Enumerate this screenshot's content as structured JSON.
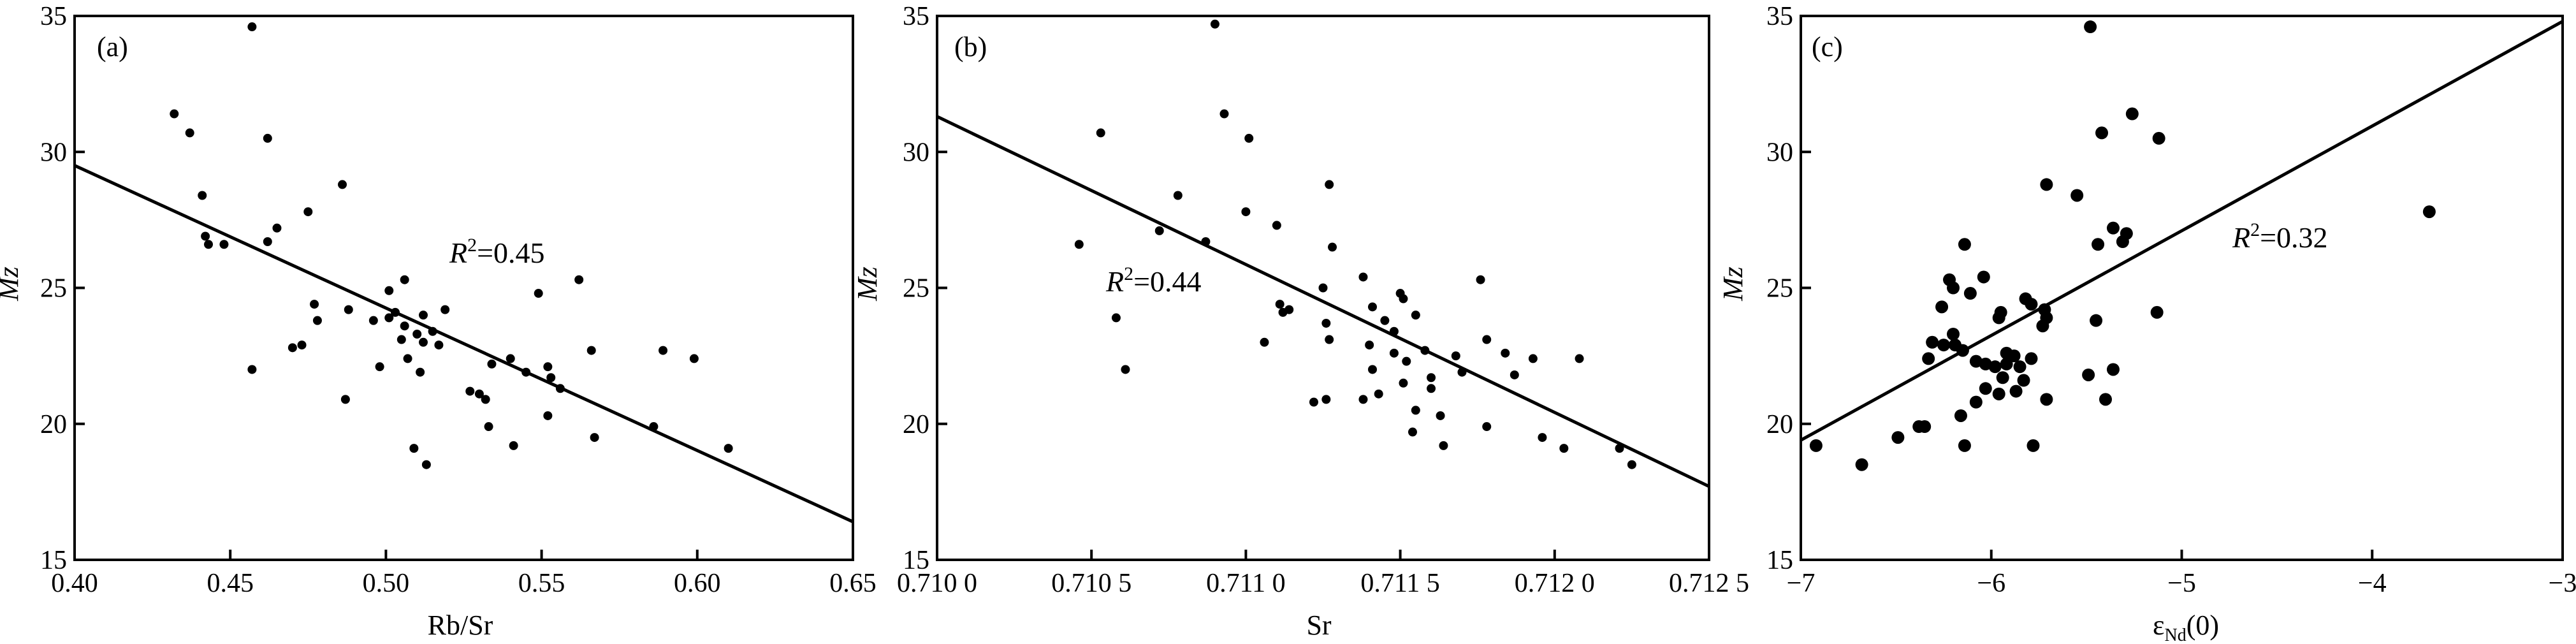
{
  "chart_data": [
    {
      "type": "scatter",
      "panel_label": "(a)",
      "xlabel": "Rb/Sr",
      "ylabel": "Mz",
      "xlim": [
        0.4,
        0.65
      ],
      "ylim": [
        15,
        35
      ],
      "xticks": [
        "0.40",
        "0.45",
        "0.50",
        "0.55",
        "0.60",
        "0.65"
      ],
      "yticks": [
        "15",
        "20",
        "25",
        "30",
        "35"
      ],
      "annotation": {
        "prefix": "R",
        "sup": "2",
        "value": "=0.45"
      },
      "fit_line": {
        "x": [
          0.4,
          0.65
        ],
        "y": [
          29.5,
          16.4
        ]
      },
      "points": [
        [
          0.457,
          34.6
        ],
        [
          0.432,
          31.4
        ],
        [
          0.437,
          30.7
        ],
        [
          0.462,
          30.5
        ],
        [
          0.486,
          28.8
        ],
        [
          0.441,
          28.4
        ],
        [
          0.475,
          27.8
        ],
        [
          0.465,
          27.2
        ],
        [
          0.442,
          26.9
        ],
        [
          0.443,
          26.6
        ],
        [
          0.448,
          26.6
        ],
        [
          0.462,
          26.7
        ],
        [
          0.501,
          24.9
        ],
        [
          0.506,
          25.3
        ],
        [
          0.549,
          24.8
        ],
        [
          0.562,
          25.3
        ],
        [
          0.477,
          24.4
        ],
        [
          0.488,
          24.2
        ],
        [
          0.503,
          24.1
        ],
        [
          0.512,
          24.0
        ],
        [
          0.519,
          24.2
        ],
        [
          0.496,
          23.8
        ],
        [
          0.506,
          23.6
        ],
        [
          0.51,
          23.3
        ],
        [
          0.478,
          23.8
        ],
        [
          0.501,
          23.9
        ],
        [
          0.515,
          23.4
        ],
        [
          0.505,
          23.1
        ],
        [
          0.512,
          23.0
        ],
        [
          0.517,
          22.9
        ],
        [
          0.47,
          22.8
        ],
        [
          0.473,
          22.9
        ],
        [
          0.498,
          22.1
        ],
        [
          0.507,
          22.4
        ],
        [
          0.534,
          22.2
        ],
        [
          0.54,
          22.4
        ],
        [
          0.545,
          21.9
        ],
        [
          0.552,
          22.1
        ],
        [
          0.553,
          21.7
        ],
        [
          0.566,
          22.7
        ],
        [
          0.589,
          22.7
        ],
        [
          0.599,
          22.4
        ],
        [
          0.457,
          22.0
        ],
        [
          0.527,
          21.2
        ],
        [
          0.53,
          21.1
        ],
        [
          0.532,
          20.9
        ],
        [
          0.511,
          21.9
        ],
        [
          0.556,
          21.3
        ],
        [
          0.487,
          20.9
        ],
        [
          0.533,
          19.9
        ],
        [
          0.509,
          19.1
        ],
        [
          0.541,
          19.2
        ],
        [
          0.513,
          18.5
        ],
        [
          0.567,
          19.5
        ],
        [
          0.586,
          19.9
        ],
        [
          0.552,
          20.3
        ],
        [
          0.61,
          19.1
        ]
      ]
    },
    {
      "type": "scatter",
      "panel_label": "(b)",
      "xlabel": "Sr",
      "ylabel": "Mz",
      "xlim": [
        0.71,
        0.7125
      ],
      "ylim": [
        15,
        35
      ],
      "xticks": [
        "0.710 0",
        "0.710 5",
        "0.711 0",
        "0.711 5",
        "0.712 0",
        "0.712 5"
      ],
      "yticks": [
        "15",
        "20",
        "25",
        "30",
        "35"
      ],
      "annotation": {
        "prefix": "R",
        "sup": "2",
        "value": "=0.44"
      },
      "fit_line": {
        "x": [
          0.71,
          0.7125
        ],
        "y": [
          31.3,
          17.7
        ]
      },
      "points": [
        [
          0.7109,
          34.7
        ],
        [
          0.71053,
          30.7
        ],
        [
          0.71093,
          31.4
        ],
        [
          0.71101,
          30.5
        ],
        [
          0.71127,
          28.8
        ],
        [
          0.71078,
          28.4
        ],
        [
          0.711,
          27.8
        ],
        [
          0.71072,
          27.1
        ],
        [
          0.71087,
          26.7
        ],
        [
          0.7111,
          27.3
        ],
        [
          0.71128,
          26.5
        ],
        [
          0.71046,
          26.6
        ],
        [
          0.71125,
          25.0
        ],
        [
          0.71138,
          25.4
        ],
        [
          0.7115,
          24.8
        ],
        [
          0.71151,
          24.6
        ],
        [
          0.71176,
          25.3
        ],
        [
          0.71111,
          24.4
        ],
        [
          0.71112,
          24.1
        ],
        [
          0.71114,
          24.2
        ],
        [
          0.71126,
          23.7
        ],
        [
          0.71141,
          24.3
        ],
        [
          0.71145,
          23.8
        ],
        [
          0.71155,
          24.0
        ],
        [
          0.71148,
          23.4
        ],
        [
          0.71058,
          23.9
        ],
        [
          0.7114,
          22.9
        ],
        [
          0.71148,
          22.6
        ],
        [
          0.71141,
          22.0
        ],
        [
          0.71127,
          23.1
        ],
        [
          0.71152,
          22.3
        ],
        [
          0.71158,
          22.7
        ],
        [
          0.71168,
          22.5
        ],
        [
          0.71178,
          23.1
        ],
        [
          0.71184,
          22.6
        ],
        [
          0.71193,
          22.4
        ],
        [
          0.71208,
          22.4
        ],
        [
          0.71106,
          23.0
        ],
        [
          0.7117,
          21.9
        ],
        [
          0.7116,
          21.7
        ],
        [
          0.71151,
          21.5
        ],
        [
          0.71143,
          21.1
        ],
        [
          0.7116,
          21.3
        ],
        [
          0.71138,
          20.9
        ],
        [
          0.71126,
          20.9
        ],
        [
          0.71122,
          20.8
        ],
        [
          0.71163,
          20.3
        ],
        [
          0.71155,
          20.5
        ],
        [
          0.71178,
          19.9
        ],
        [
          0.71154,
          19.7
        ],
        [
          0.71164,
          19.2
        ],
        [
          0.71196,
          19.5
        ],
        [
          0.71203,
          19.1
        ],
        [
          0.71221,
          19.1
        ],
        [
          0.71225,
          18.5
        ],
        [
          0.71061,
          22.0
        ],
        [
          0.71187,
          21.8
        ]
      ]
    },
    {
      "type": "scatter",
      "panel_label": "(c)",
      "xlabel": "ε",
      "xlabel_sub": "Nd",
      "xlabel_suffix": "(0)",
      "ylabel": "Mz",
      "xlim": [
        -7,
        -3
      ],
      "ylim": [
        15,
        35
      ],
      "xticks": [
        "−7",
        "−6",
        "−5",
        "−4",
        "−3"
      ],
      "yticks": [
        "15",
        "20",
        "25",
        "30",
        "35"
      ],
      "annotation": {
        "prefix": "R",
        "sup": "2",
        "value": "=0.32"
      },
      "fit_line": {
        "x": [
          -7,
          -3
        ],
        "y": [
          19.4,
          34.8
        ]
      },
      "points": [
        [
          -5.48,
          34.6
        ],
        [
          -5.26,
          31.4
        ],
        [
          -5.42,
          30.7
        ],
        [
          -5.12,
          30.5
        ],
        [
          -5.71,
          28.8
        ],
        [
          -5.55,
          28.4
        ],
        [
          -3.7,
          27.8
        ],
        [
          -5.36,
          27.2
        ],
        [
          -5.29,
          27.0
        ],
        [
          -5.31,
          26.7
        ],
        [
          -5.44,
          26.6
        ],
        [
          -6.14,
          26.6
        ],
        [
          -6.22,
          25.3
        ],
        [
          -6.04,
          25.4
        ],
        [
          -6.2,
          25.0
        ],
        [
          -6.11,
          24.8
        ],
        [
          -5.82,
          24.6
        ],
        [
          -5.79,
          24.4
        ],
        [
          -5.95,
          24.1
        ],
        [
          -5.72,
          24.2
        ],
        [
          -5.71,
          23.9
        ],
        [
          -6.26,
          24.3
        ],
        [
          -5.96,
          23.9
        ],
        [
          -5.73,
          23.6
        ],
        [
          -5.13,
          24.1
        ],
        [
          -5.45,
          23.8
        ],
        [
          -6.2,
          23.3
        ],
        [
          -6.25,
          22.9
        ],
        [
          -6.19,
          22.9
        ],
        [
          -6.15,
          22.7
        ],
        [
          -6.31,
          23.0
        ],
        [
          -6.08,
          22.3
        ],
        [
          -6.33,
          22.4
        ],
        [
          -6.03,
          22.2
        ],
        [
          -5.98,
          22.1
        ],
        [
          -5.92,
          22.6
        ],
        [
          -5.88,
          22.5
        ],
        [
          -5.92,
          22.2
        ],
        [
          -5.85,
          22.1
        ],
        [
          -5.79,
          22.4
        ],
        [
          -5.94,
          21.7
        ],
        [
          -5.83,
          21.6
        ],
        [
          -5.49,
          21.8
        ],
        [
          -5.36,
          22.0
        ],
        [
          -5.87,
          21.2
        ],
        [
          -5.96,
          21.1
        ],
        [
          -6.08,
          20.8
        ],
        [
          -6.03,
          21.3
        ],
        [
          -5.71,
          20.9
        ],
        [
          -5.4,
          20.9
        ],
        [
          -6.16,
          20.3
        ],
        [
          -6.38,
          19.9
        ],
        [
          -6.35,
          19.9
        ],
        [
          -6.49,
          19.5
        ],
        [
          -6.14,
          19.2
        ],
        [
          -5.78,
          19.2
        ],
        [
          -6.92,
          19.2
        ],
        [
          -6.68,
          18.5
        ]
      ]
    }
  ]
}
